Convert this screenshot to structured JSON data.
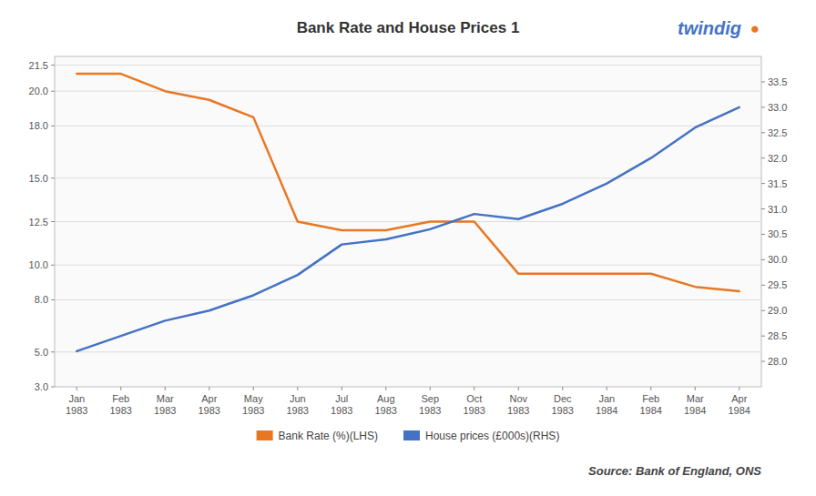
{
  "chart_data": {
    "type": "line",
    "title": "Bank Rate and House Prices 1",
    "categories": [
      "Jan\n1983",
      "Feb\n1983",
      "Mar\n1983",
      "Apr\n1983",
      "May\n1983",
      "Jun\n1983",
      "Jul\n1983",
      "Aug\n1983",
      "Sep\n1983",
      "Oct\n1983",
      "Nov\n1983",
      "Dec\n1983",
      "Jan\n1984",
      "Feb\n1984",
      "Mar\n1984",
      "Apr\n1984"
    ],
    "series": [
      {
        "name": "Bank Rate (%)(LHS)",
        "color": "#E87722",
        "values": [
          21.0,
          21.0,
          20.0,
          19.5,
          18.5,
          12.5,
          12.0,
          12.0,
          12.5,
          12.5,
          9.5,
          9.5,
          9.5,
          9.5,
          8.75,
          8.5
        ]
      },
      {
        "name": "House prices (£000s)(RHS)",
        "color": "#4472C4",
        "axis": "y2",
        "values": [
          28.2,
          28.5,
          28.8,
          29.0,
          29.3,
          29.7,
          30.3,
          30.4,
          30.6,
          30.9,
          30.8,
          31.1,
          31.5,
          32.0,
          32.6,
          33.0
        ]
      }
    ],
    "ylim": [
      3.0,
      22.0
    ],
    "yticks": [
      {
        "value": 3,
        "label": "3.0"
      },
      {
        "value": 5,
        "label": "5.0"
      },
      {
        "value": 8,
        "label": "8.0"
      },
      {
        "value": 10,
        "label": "10.0"
      },
      12.5,
      {
        "value": 15,
        "label": "15.0"
      },
      {
        "value": 18,
        "label": "18.0"
      },
      {
        "value": 20,
        "label": "20.0"
      },
      21.5
    ],
    "y2lim": [
      27.5,
      34.0
    ],
    "y2ticks": [
      {
        "value": 28,
        "label": "28.0"
      },
      28.5,
      {
        "value": 29,
        "label": "29.0"
      },
      29.5,
      {
        "value": 30,
        "label": "30.0"
      },
      30.5,
      {
        "value": 31,
        "label": "31.0"
      },
      31.5,
      {
        "value": 32,
        "label": "32.0"
      },
      32.5,
      {
        "value": 33,
        "label": "33.0"
      },
      33.5
    ],
    "grid": true,
    "legend": "bottom",
    "annotations": [
      {
        "text": "Source: Bank of England, ONS",
        "color": "#444444"
      },
      {
        "text": "twindig",
        "color": "#4472C4"
      },
      {
        "text": "●",
        "color": "#E87722"
      }
    ]
  }
}
